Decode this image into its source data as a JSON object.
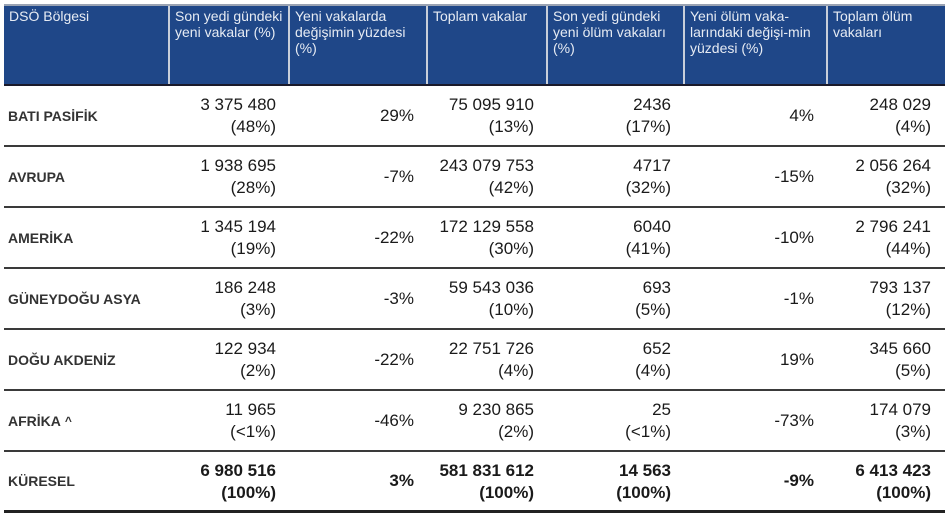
{
  "table": {
    "headers": [
      "DSÖ Bölgesi",
      "Son yedi gündeki yeni vakalar (%)",
      "Yeni vakalarda değişimin yüzdesi (%)",
      "Toplam vakalar",
      "Son yedi gündeki yeni ölüm vakaları (%)",
      "Yeni ölüm vaka-larındaki değişi-min yüzdesi (%)",
      "Toplam ölüm vakaları"
    ],
    "rows": [
      {
        "region": "BATI PASİFİK",
        "note": "",
        "new_cases": "3 375 480",
        "new_cases_pct": "(48%)",
        "new_cases_change": "29%",
        "total_cases": "75 095 910",
        "total_cases_pct": "(13%)",
        "new_deaths": "2436",
        "new_deaths_pct": "(17%)",
        "new_deaths_change": "4%",
        "total_deaths": "248 029",
        "total_deaths_pct": "(4%)"
      },
      {
        "region": "AVRUPA",
        "note": "",
        "new_cases": "1 938 695",
        "new_cases_pct": "(28%)",
        "new_cases_change": "-7%",
        "total_cases": "243 079 753",
        "total_cases_pct": "(42%)",
        "new_deaths": "4717",
        "new_deaths_pct": "(32%)",
        "new_deaths_change": "-15%",
        "total_deaths": "2 056 264",
        "total_deaths_pct": "(32%)"
      },
      {
        "region": "AMERİKA",
        "note": "",
        "new_cases": "1 345 194",
        "new_cases_pct": "(19%)",
        "new_cases_change": "-22%",
        "total_cases": "172 129 558",
        "total_cases_pct": "(30%)",
        "new_deaths": "6040",
        "new_deaths_pct": "(41%)",
        "new_deaths_change": "-10%",
        "total_deaths": "2 796 241",
        "total_deaths_pct": "(44%)"
      },
      {
        "region": "GÜNEYDOĞU ASYA",
        "note": "",
        "new_cases": "186 248",
        "new_cases_pct": "(3%)",
        "new_cases_change": "-3%",
        "total_cases": "59 543 036",
        "total_cases_pct": "(10%)",
        "new_deaths": "693",
        "new_deaths_pct": "(5%)",
        "new_deaths_change": "-1%",
        "total_deaths": "793 137",
        "total_deaths_pct": "(12%)"
      },
      {
        "region": "DOĞU AKDENİZ",
        "note": "",
        "new_cases": "122 934",
        "new_cases_pct": "(2%)",
        "new_cases_change": "-22%",
        "total_cases": "22 751 726",
        "total_cases_pct": "(4%)",
        "new_deaths": "652",
        "new_deaths_pct": "(4%)",
        "new_deaths_change": "19%",
        "total_deaths": "345 660",
        "total_deaths_pct": "(5%)"
      },
      {
        "region": "AFRİKA",
        "note": "^",
        "new_cases": "11 965",
        "new_cases_pct": "(<1%)",
        "new_cases_change": "-46%",
        "total_cases": "9 230 865",
        "total_cases_pct": "(2%)",
        "new_deaths": "25",
        "new_deaths_pct": "(<1%)",
        "new_deaths_change": "-73%",
        "total_deaths": "174 079",
        "total_deaths_pct": "(3%)"
      }
    ],
    "total": {
      "region": "KÜRESEL",
      "new_cases": "6 980 516",
      "new_cases_pct": "(100%)",
      "new_cases_change": "3%",
      "total_cases": "581 831 612",
      "total_cases_pct": "(100%)",
      "new_deaths": "14 563",
      "new_deaths_pct": "(100%)",
      "new_deaths_change": "-9%",
      "total_deaths": "6 413 423",
      "total_deaths_pct": "(100%)"
    }
  },
  "colors": {
    "header_bg": "#1f4788",
    "header_text": "#e6ebf3"
  }
}
